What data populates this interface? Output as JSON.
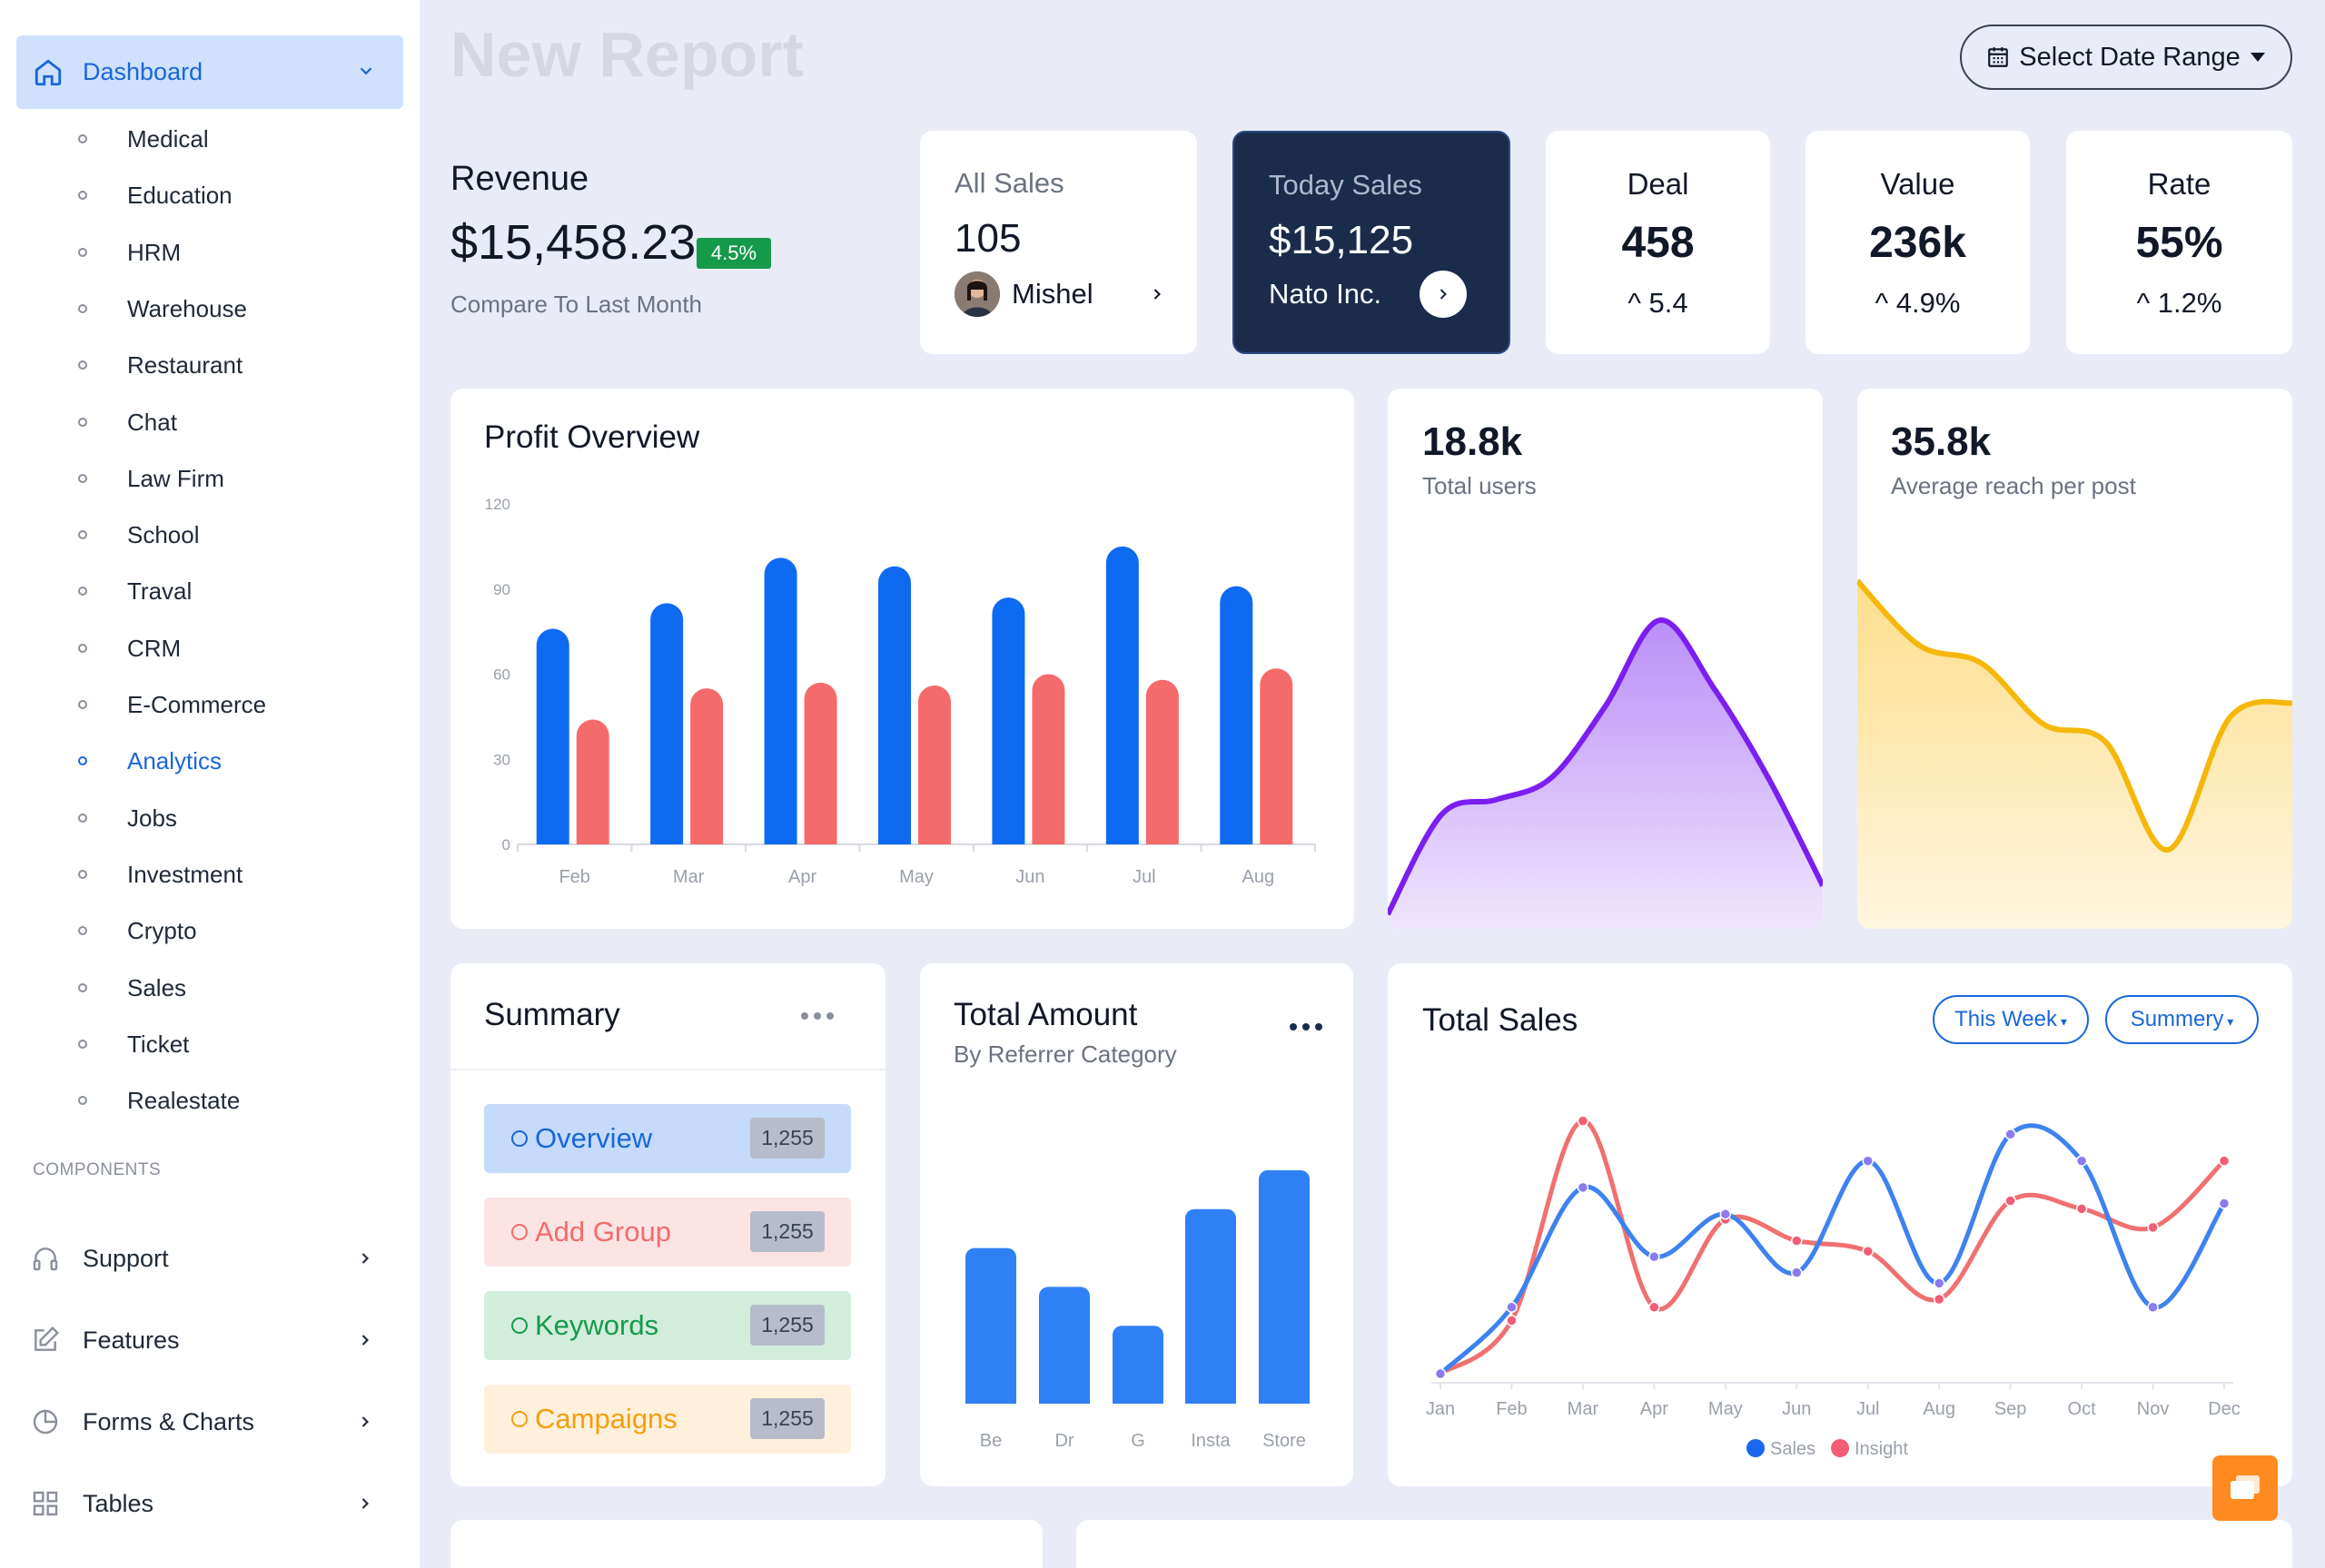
{
  "sidebar": {
    "dashboard_label": "Dashboard",
    "items": [
      "Medical",
      "Education",
      "HRM",
      "Warehouse",
      "Restaurant",
      "Chat",
      "Law Firm",
      "School",
      "Traval",
      "CRM",
      "E-Commerce",
      "Analytics",
      "Jobs",
      "Investment",
      "Crypto",
      "Sales",
      "Ticket",
      "Realestate"
    ],
    "active_item": "Analytics",
    "section_title": "COMPONENTS",
    "groups": [
      "Support",
      "Features",
      "Forms & Charts",
      "Tables"
    ]
  },
  "header": {
    "title": "New Report",
    "date_range_label": "Select Date Range"
  },
  "revenue": {
    "title": "Revenue",
    "amount": "$15,458.23",
    "badge": "4.5%",
    "compare": "Compare To Last Month"
  },
  "all_sales": {
    "label": "All Sales",
    "value": "105",
    "person": "Mishel"
  },
  "today_sales": {
    "label": "Today Sales",
    "value": "$15,125",
    "company": "Nato Inc."
  },
  "deal": {
    "label": "Deal",
    "value": "458",
    "change": "5.4"
  },
  "value_card": {
    "label": "Value",
    "value": "236k",
    "change": "4.9%"
  },
  "rate": {
    "label": "Rate",
    "value": "55%",
    "change": "1.2%"
  },
  "profit": {
    "title": "Profit Overview"
  },
  "users": {
    "value": "18.8k",
    "label": "Total users"
  },
  "reach": {
    "value": "35.8k",
    "label": "Average reach per post"
  },
  "summary": {
    "title": "Summary",
    "rows": [
      {
        "label": "Overview",
        "count": "1,255"
      },
      {
        "label": "Add Group",
        "count": "1,255"
      },
      {
        "label": "Keywords",
        "count": "1,255"
      },
      {
        "label": "Campaigns",
        "count": "1,255"
      }
    ]
  },
  "total_amount": {
    "title": "Total Amount",
    "subtitle": "By Referrer Category"
  },
  "total_sales": {
    "title": "Total Sales",
    "filter_week": "This Week",
    "filter_summary": "Summery"
  },
  "colors": {
    "accent": "#1a66d9",
    "dark_card": "#1a2b4c",
    "bar_blue": "#0f6af2",
    "bar_red": "#f56b6b",
    "purple": "#7a1ff0",
    "amber": "#f5b70a",
    "success": "#159a4a",
    "fab": "#ff8a1f"
  },
  "chart_data": [
    {
      "type": "bar",
      "title": "Profit Overview",
      "categories": [
        "Feb",
        "Mar",
        "Apr",
        "May",
        "Jun",
        "Jul",
        "Aug"
      ],
      "ylim": [
        0,
        120
      ],
      "yticks": [
        0,
        30,
        60,
        90,
        120
      ],
      "series": [
        {
          "values": [
            76,
            85,
            101,
            98,
            87,
            105,
            91
          ]
        },
        {
          "values": [
            44,
            55,
            57,
            56,
            60,
            58,
            62
          ]
        }
      ]
    },
    {
      "type": "area",
      "title": "Total users",
      "values": [
        2,
        30,
        34,
        40,
        60,
        84,
        65,
        40,
        10
      ],
      "ylim": [
        0,
        100
      ]
    },
    {
      "type": "area",
      "title": "Average reach per post",
      "values": [
        95,
        77,
        72,
        55,
        50,
        20,
        57,
        61
      ],
      "ylim": [
        0,
        100
      ]
    },
    {
      "type": "bar",
      "title": "Total Amount",
      "categories": [
        "Be",
        "Dr",
        "G",
        "Insta",
        "Store"
      ],
      "values": [
        40,
        30,
        20,
        50,
        60
      ],
      "ylim": [
        0,
        70
      ]
    },
    {
      "type": "line",
      "title": "Total Sales",
      "categories": [
        "Jan",
        "Feb",
        "Mar",
        "Apr",
        "May",
        "Jun",
        "Jul",
        "Aug",
        "Sep",
        "Oct",
        "Nov",
        "Dec"
      ],
      "ylim": [
        0,
        100
      ],
      "series": [
        {
          "name": "Sales",
          "values": [
            0,
            25,
            70,
            44,
            60,
            38,
            80,
            34,
            90,
            80,
            25,
            64
          ]
        },
        {
          "name": "Insight",
          "values": [
            0,
            20,
            95,
            25,
            58,
            50,
            46,
            28,
            65,
            62,
            55,
            80
          ]
        }
      ]
    }
  ]
}
